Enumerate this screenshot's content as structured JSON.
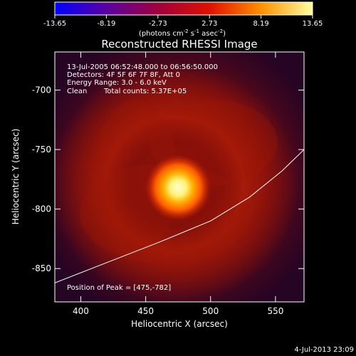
{
  "chart_data": {
    "type": "heatmap",
    "title": "Reconstructed RHESSI Image",
    "xlabel": "Heliocentric X (arcsec)",
    "ylabel": "Heliocentric Y (arcsec)",
    "xlim": [
      380,
      572
    ],
    "ylim": [
      -878,
      -668
    ],
    "x_ticks": [
      400,
      450,
      500,
      550
    ],
    "y_ticks": [
      -700,
      -750,
      -800,
      -850
    ],
    "colorbar": {
      "ticks": [
        -13.65,
        -8.19,
        -2.73,
        2.73,
        8.19,
        13.65
      ],
      "label_main": "(photons cm",
      "label_exp1": "-2",
      "label_mid1": " s",
      "label_exp2": "-1",
      "label_mid2": " asec",
      "label_exp3": "-2",
      "label_end": ")",
      "colors": [
        "#0000ff",
        "#5a00a0",
        "#a0003c",
        "#e01000",
        "#ff9000",
        "#ffffa0"
      ]
    },
    "annotations": {
      "time_range": "13-Jul-2005 06:52:48.000 to 06:56:50.000",
      "detectors": "Detectors: 4F 5F 6F 7F 8F, Att 0",
      "energy": "Energy Range: 3.0 - 6.0 keV",
      "clean": "Clean",
      "total_counts": "Total counts: 5.37E+05",
      "peak_label": "Position of Peak = [475,-782]"
    },
    "peak": [
      475,
      -782
    ],
    "limb_curve": [
      [
        380,
        -862
      ],
      [
        420,
        -845
      ],
      [
        460,
        -828
      ],
      [
        500,
        -810
      ],
      [
        530,
        -790
      ],
      [
        555,
        -768
      ],
      [
        572,
        -750
      ]
    ],
    "timestamp": "4-Jul-2013 23:09"
  }
}
